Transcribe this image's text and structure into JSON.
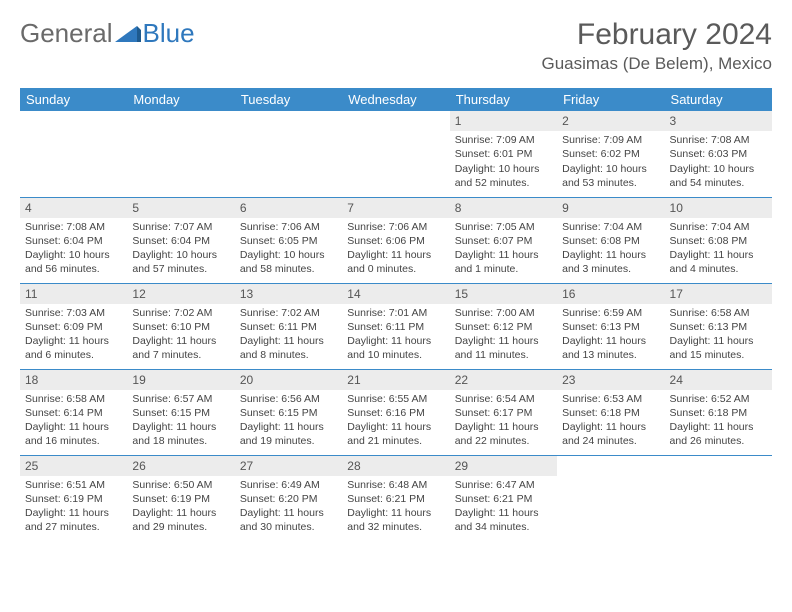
{
  "logo": {
    "part1": "General",
    "part2": "Blue"
  },
  "title": "February 2024",
  "location": "Guasimas (De Belem), Mexico",
  "colors": {
    "header_bg": "#3b8bc9",
    "header_text": "#ffffff",
    "border": "#3b8bc9",
    "daynum_bg": "#ececec",
    "logo_gray": "#6a6a6a",
    "logo_blue": "#2f78bd",
    "body_text": "#444"
  },
  "weekdays": [
    "Sunday",
    "Monday",
    "Tuesday",
    "Wednesday",
    "Thursday",
    "Friday",
    "Saturday"
  ],
  "weeks": [
    [
      null,
      null,
      null,
      null,
      {
        "n": "1",
        "sr": "7:09 AM",
        "ss": "6:01 PM",
        "dl": "10 hours and 52 minutes."
      },
      {
        "n": "2",
        "sr": "7:09 AM",
        "ss": "6:02 PM",
        "dl": "10 hours and 53 minutes."
      },
      {
        "n": "3",
        "sr": "7:08 AM",
        "ss": "6:03 PM",
        "dl": "10 hours and 54 minutes."
      }
    ],
    [
      {
        "n": "4",
        "sr": "7:08 AM",
        "ss": "6:04 PM",
        "dl": "10 hours and 56 minutes."
      },
      {
        "n": "5",
        "sr": "7:07 AM",
        "ss": "6:04 PM",
        "dl": "10 hours and 57 minutes."
      },
      {
        "n": "6",
        "sr": "7:06 AM",
        "ss": "6:05 PM",
        "dl": "10 hours and 58 minutes."
      },
      {
        "n": "7",
        "sr": "7:06 AM",
        "ss": "6:06 PM",
        "dl": "11 hours and 0 minutes."
      },
      {
        "n": "8",
        "sr": "7:05 AM",
        "ss": "6:07 PM",
        "dl": "11 hours and 1 minute."
      },
      {
        "n": "9",
        "sr": "7:04 AM",
        "ss": "6:08 PM",
        "dl": "11 hours and 3 minutes."
      },
      {
        "n": "10",
        "sr": "7:04 AM",
        "ss": "6:08 PM",
        "dl": "11 hours and 4 minutes."
      }
    ],
    [
      {
        "n": "11",
        "sr": "7:03 AM",
        "ss": "6:09 PM",
        "dl": "11 hours and 6 minutes."
      },
      {
        "n": "12",
        "sr": "7:02 AM",
        "ss": "6:10 PM",
        "dl": "11 hours and 7 minutes."
      },
      {
        "n": "13",
        "sr": "7:02 AM",
        "ss": "6:11 PM",
        "dl": "11 hours and 8 minutes."
      },
      {
        "n": "14",
        "sr": "7:01 AM",
        "ss": "6:11 PM",
        "dl": "11 hours and 10 minutes."
      },
      {
        "n": "15",
        "sr": "7:00 AM",
        "ss": "6:12 PM",
        "dl": "11 hours and 11 minutes."
      },
      {
        "n": "16",
        "sr": "6:59 AM",
        "ss": "6:13 PM",
        "dl": "11 hours and 13 minutes."
      },
      {
        "n": "17",
        "sr": "6:58 AM",
        "ss": "6:13 PM",
        "dl": "11 hours and 15 minutes."
      }
    ],
    [
      {
        "n": "18",
        "sr": "6:58 AM",
        "ss": "6:14 PM",
        "dl": "11 hours and 16 minutes."
      },
      {
        "n": "19",
        "sr": "6:57 AM",
        "ss": "6:15 PM",
        "dl": "11 hours and 18 minutes."
      },
      {
        "n": "20",
        "sr": "6:56 AM",
        "ss": "6:15 PM",
        "dl": "11 hours and 19 minutes."
      },
      {
        "n": "21",
        "sr": "6:55 AM",
        "ss": "6:16 PM",
        "dl": "11 hours and 21 minutes."
      },
      {
        "n": "22",
        "sr": "6:54 AM",
        "ss": "6:17 PM",
        "dl": "11 hours and 22 minutes."
      },
      {
        "n": "23",
        "sr": "6:53 AM",
        "ss": "6:18 PM",
        "dl": "11 hours and 24 minutes."
      },
      {
        "n": "24",
        "sr": "6:52 AM",
        "ss": "6:18 PM",
        "dl": "11 hours and 26 minutes."
      }
    ],
    [
      {
        "n": "25",
        "sr": "6:51 AM",
        "ss": "6:19 PM",
        "dl": "11 hours and 27 minutes."
      },
      {
        "n": "26",
        "sr": "6:50 AM",
        "ss": "6:19 PM",
        "dl": "11 hours and 29 minutes."
      },
      {
        "n": "27",
        "sr": "6:49 AM",
        "ss": "6:20 PM",
        "dl": "11 hours and 30 minutes."
      },
      {
        "n": "28",
        "sr": "6:48 AM",
        "ss": "6:21 PM",
        "dl": "11 hours and 32 minutes."
      },
      {
        "n": "29",
        "sr": "6:47 AM",
        "ss": "6:21 PM",
        "dl": "11 hours and 34 minutes."
      },
      null,
      null
    ]
  ],
  "labels": {
    "sunrise": "Sunrise: ",
    "sunset": "Sunset: ",
    "daylight": "Daylight: "
  }
}
